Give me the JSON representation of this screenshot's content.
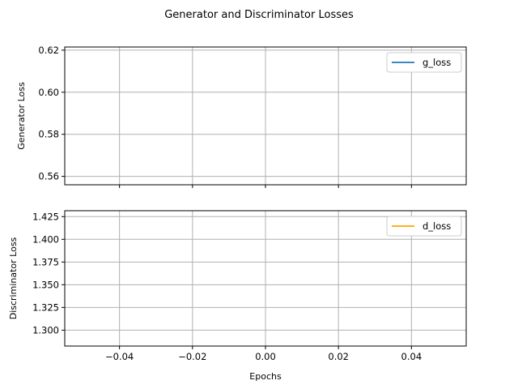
{
  "chart_data": {
    "title": "Generator and Discriminator Losses",
    "shared_x": {
      "label": "Epochs",
      "lim": [
        -0.055,
        0.055
      ],
      "ticks": [
        -0.04,
        -0.02,
        0.0,
        0.02,
        0.04
      ],
      "tick_labels": [
        "−0.04",
        "−0.02",
        "0.00",
        "0.02",
        "0.04"
      ]
    },
    "grid": true,
    "subplots": [
      {
        "type": "line",
        "ylabel": "Generator Loss",
        "ylim": [
          0.556,
          0.6215
        ],
        "yticks": [
          0.56,
          0.58,
          0.6,
          0.62
        ],
        "ytick_labels": [
          "0.56",
          "0.58",
          "0.60",
          "0.62"
        ],
        "legend_placement": "upper-right",
        "series": [
          {
            "name": "g_loss",
            "color": "#1f77b4",
            "x": [],
            "y": []
          }
        ]
      },
      {
        "type": "line",
        "ylabel": "Discriminator Loss",
        "ylim": [
          1.2825,
          1.4315
        ],
        "yticks": [
          1.3,
          1.325,
          1.35,
          1.375,
          1.4,
          1.425
        ],
        "ytick_labels": [
          "1.300",
          "1.325",
          "1.350",
          "1.375",
          "1.400",
          "1.425"
        ],
        "legend_placement": "upper-right",
        "series": [
          {
            "name": "d_loss",
            "color": "#ffa500",
            "x": [],
            "y": []
          }
        ]
      }
    ]
  }
}
